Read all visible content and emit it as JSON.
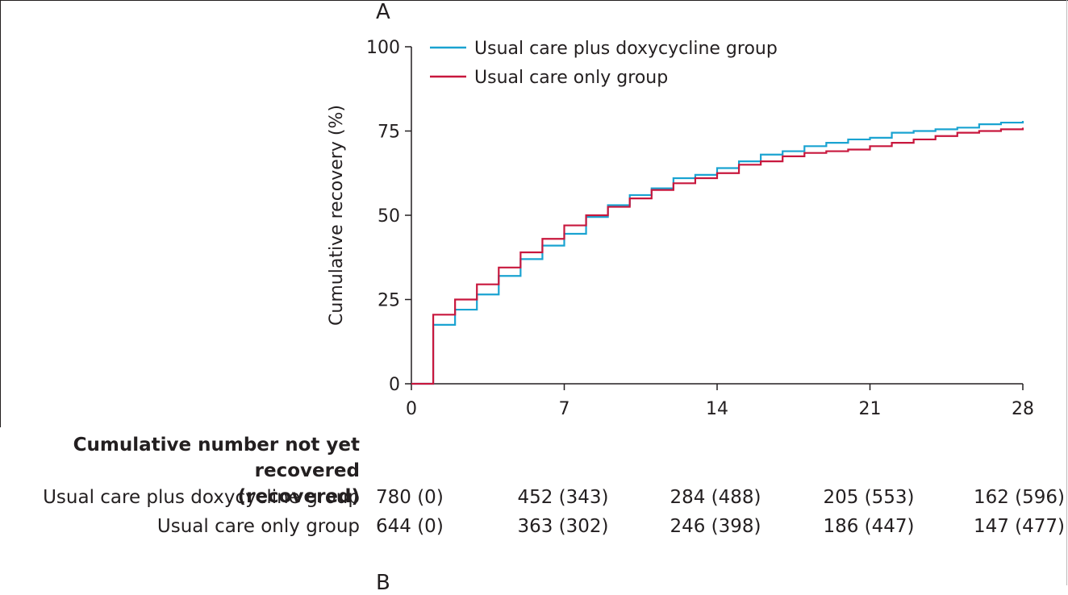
{
  "panel_labels": {
    "top": "A",
    "bottom": "B"
  },
  "chart_data": {
    "type": "line",
    "title": "",
    "xlabel": "",
    "ylabel": "Cumulative recovery (%)",
    "xlim": [
      0,
      28
    ],
    "ylim": [
      0,
      100
    ],
    "x_ticks": [
      0,
      7,
      14,
      21,
      28
    ],
    "y_ticks": [
      0,
      25,
      50,
      75,
      100
    ],
    "grid": false,
    "legend_position": "top-left",
    "step": true,
    "series": [
      {
        "name": "Usual care plus doxycycline group",
        "color": "#1aa3d1",
        "x": [
          0,
          1,
          2,
          3,
          4,
          5,
          6,
          7,
          8,
          9,
          10,
          11,
          12,
          13,
          14,
          15,
          16,
          17,
          18,
          19,
          20,
          21,
          22,
          23,
          24,
          25,
          26,
          27,
          28
        ],
        "y": [
          0,
          17.5,
          22,
          26.5,
          32,
          37,
          41,
          44.5,
          49.5,
          53,
          56,
          58,
          61,
          62,
          64,
          66,
          68,
          69,
          70.5,
          71.5,
          72.5,
          73,
          74.5,
          75,
          75.5,
          76,
          77,
          77.5,
          78
        ]
      },
      {
        "name": "Usual care only group",
        "color": "#c8173d",
        "x": [
          0,
          1,
          2,
          3,
          4,
          5,
          6,
          7,
          8,
          9,
          10,
          11,
          12,
          13,
          14,
          15,
          16,
          17,
          18,
          19,
          20,
          21,
          22,
          23,
          24,
          25,
          26,
          27,
          28
        ],
        "y": [
          0,
          20.5,
          25,
          29.5,
          34.5,
          39,
          43,
          47,
          50,
          52.5,
          55,
          57.5,
          59.5,
          61,
          62.5,
          65,
          66,
          67.5,
          68.5,
          69,
          69.5,
          70.5,
          71.5,
          72.5,
          73.5,
          74.5,
          75,
          75.5,
          76
        ]
      }
    ]
  },
  "risk_table": {
    "title_line1": "Cumulative number not yet recovered",
    "title_line2": "(recovered)",
    "rows": [
      {
        "label": "Usual care plus doxycycline group",
        "values": [
          "780 (0)",
          "452 (343)",
          "284 (488)",
          "205 (553)",
          "162 (596)"
        ]
      },
      {
        "label": "Usual care only group",
        "values": [
          "644 (0)",
          "363 (302)",
          "246 (398)",
          "186 (447)",
          "147 (477)"
        ]
      }
    ]
  }
}
